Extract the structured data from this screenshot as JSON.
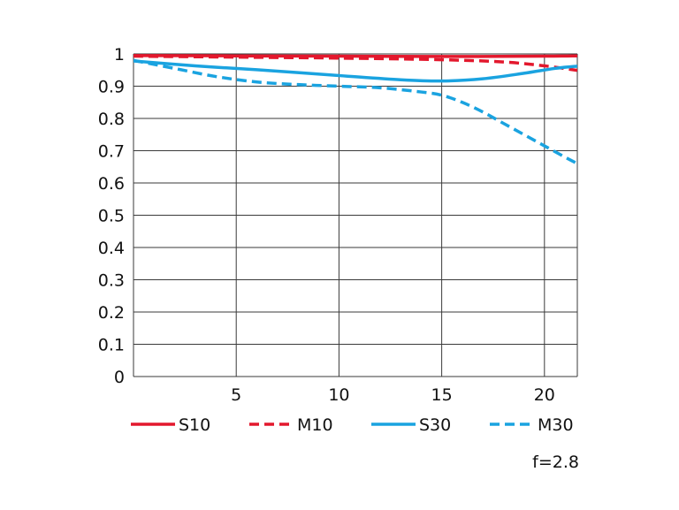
{
  "chart_data": {
    "type": "line",
    "title": "",
    "xlabel": "",
    "ylabel": "",
    "xlim": [
      0,
      21.6
    ],
    "ylim": [
      0,
      1
    ],
    "x_ticks": [
      5,
      10,
      15,
      20
    ],
    "y_ticks": [
      0,
      0.1,
      0.2,
      0.3,
      0.4,
      0.5,
      0.6,
      0.7,
      0.8,
      0.9,
      1
    ],
    "x_tick_labels": [
      "5",
      "10",
      "15",
      "20"
    ],
    "y_tick_labels": [
      "0",
      "0.1",
      "0.2",
      "0.3",
      "0.4",
      "0.5",
      "0.6",
      "0.7",
      "0.8",
      "0.9",
      "1"
    ],
    "grid": true,
    "legend_position": "bottom",
    "series": [
      {
        "name": "S10",
        "color": "#e3182d",
        "style": "solid",
        "points": [
          [
            0,
            0.995
          ],
          [
            5,
            0.994
          ],
          [
            10,
            0.993
          ],
          [
            15,
            0.992
          ],
          [
            20,
            0.993
          ],
          [
            21.6,
            0.994
          ]
        ]
      },
      {
        "name": "M10",
        "color": "#e3182d",
        "style": "dashed",
        "points": [
          [
            0,
            0.993
          ],
          [
            5,
            0.99
          ],
          [
            10,
            0.987
          ],
          [
            15,
            0.982
          ],
          [
            18,
            0.975
          ],
          [
            20,
            0.963
          ],
          [
            21.6,
            0.949
          ]
        ]
      },
      {
        "name": "S30",
        "color": "#1aa3e0",
        "style": "solid",
        "points": [
          [
            0,
            0.978
          ],
          [
            3,
            0.963
          ],
          [
            6,
            0.951
          ],
          [
            10,
            0.933
          ],
          [
            13,
            0.92
          ],
          [
            15,
            0.916
          ],
          [
            17,
            0.923
          ],
          [
            19,
            0.94
          ],
          [
            20.5,
            0.955
          ],
          [
            21.6,
            0.962
          ]
        ]
      },
      {
        "name": "M30",
        "color": "#1aa3e0",
        "style": "dashed",
        "points": [
          [
            0,
            0.98
          ],
          [
            2,
            0.955
          ],
          [
            4,
            0.93
          ],
          [
            6,
            0.913
          ],
          [
            8,
            0.905
          ],
          [
            10,
            0.9
          ],
          [
            12,
            0.895
          ],
          [
            14,
            0.882
          ],
          [
            15,
            0.872
          ],
          [
            16,
            0.85
          ],
          [
            17,
            0.82
          ],
          [
            18,
            0.785
          ],
          [
            19,
            0.75
          ],
          [
            20,
            0.715
          ],
          [
            21,
            0.68
          ],
          [
            21.6,
            0.66
          ]
        ]
      }
    ],
    "annotation": "f=2.8"
  }
}
